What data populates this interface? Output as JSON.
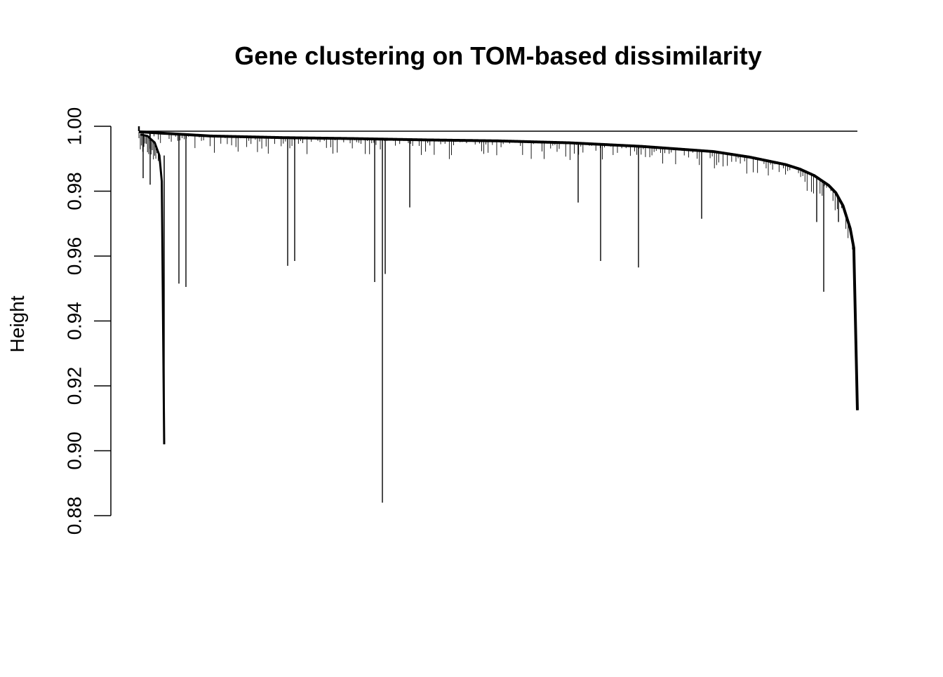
{
  "chart_data": {
    "type": "dendrogram",
    "title": "Gene clustering on TOM-based dissimilarity",
    "xlabel": "",
    "ylabel": "Height",
    "ylim": [
      0.88,
      1.0
    ],
    "yticks": [
      0.88,
      0.9,
      0.92,
      0.94,
      0.96,
      0.98,
      1.0
    ],
    "ytick_labels": [
      "0.88",
      "0.90",
      "0.92",
      "0.94",
      "0.96",
      "0.98",
      "1.00"
    ],
    "leaf_count": 1000,
    "root_height": 0.9985,
    "main_envelope": [
      [
        0.0,
        0.9983
      ],
      [
        0.03,
        0.9979
      ],
      [
        0.1,
        0.997
      ],
      [
        0.2,
        0.9965
      ],
      [
        0.3,
        0.9962
      ],
      [
        0.4,
        0.9958
      ],
      [
        0.5,
        0.9955
      ],
      [
        0.6,
        0.9949
      ],
      [
        0.7,
        0.9938
      ],
      [
        0.8,
        0.9922
      ],
      [
        0.85,
        0.9905
      ],
      [
        0.9,
        0.9882
      ],
      [
        0.92,
        0.9868
      ],
      [
        0.94,
        0.9848
      ],
      [
        0.96,
        0.9818
      ],
      [
        0.97,
        0.9795
      ],
      [
        0.98,
        0.9755
      ],
      [
        0.99,
        0.9685
      ],
      [
        0.995,
        0.9625
      ],
      [
        1.0,
        0.9125
      ]
    ],
    "early_subtree": {
      "envelope": [
        [
          0.0,
          0.9975
        ],
        [
          0.3,
          0.997
        ],
        [
          0.6,
          0.995
        ],
        [
          0.8,
          0.991
        ],
        [
          0.9,
          0.983
        ],
        [
          1.0,
          0.902
        ]
      ],
      "min_height": 0.902
    },
    "notable_branch_minima": [
      0.984,
      0.982,
      0.9515,
      0.9505,
      0.957,
      0.9585,
      0.952,
      0.884,
      0.9545,
      0.975,
      0.9765,
      0.9585,
      0.9565,
      0.9715,
      0.9705,
      0.949,
      0.9705,
      0.9125
    ]
  }
}
